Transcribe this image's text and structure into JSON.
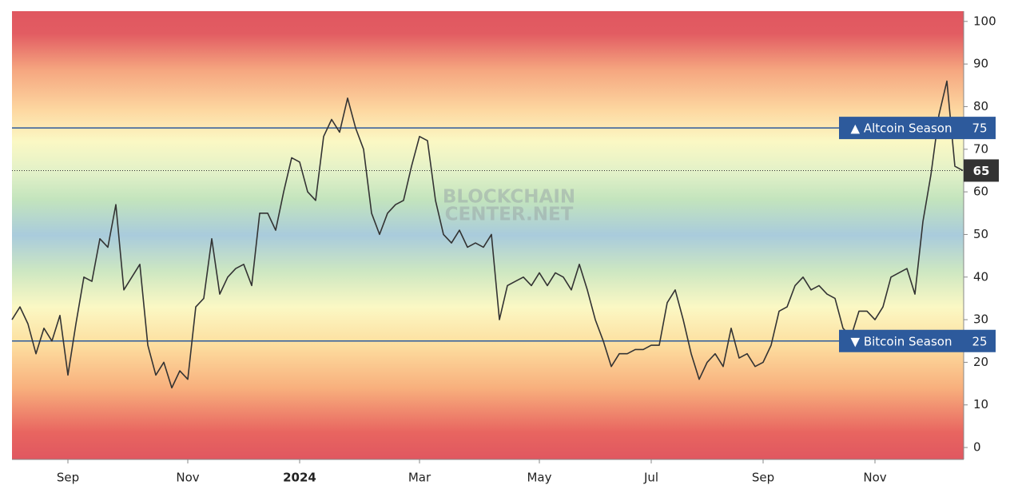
{
  "chart_data": {
    "type": "line",
    "watermark": [
      "BLOCKCHAIN",
      "CENTER.NET"
    ],
    "categories": [
      null,
      null,
      null,
      null,
      null,
      null,
      null,
      "Sep",
      null,
      null,
      null,
      null,
      null,
      null,
      null,
      null,
      null,
      null,
      null,
      null,
      null,
      null,
      "Nov",
      null,
      null,
      null,
      null,
      null,
      null,
      null,
      null,
      null,
      null,
      null,
      null,
      null,
      "2024",
      null,
      null,
      null,
      null,
      null,
      null,
      null,
      null,
      null,
      null,
      null,
      null,
      null,
      null,
      "Mar",
      null,
      null,
      null,
      null,
      null,
      null,
      null,
      null,
      null,
      null,
      null,
      null,
      null,
      null,
      "May",
      null,
      null,
      null,
      null,
      null,
      null,
      null,
      null,
      null,
      null,
      null,
      null,
      null,
      "Jul",
      null,
      null,
      null,
      null,
      null,
      null,
      null,
      null,
      null,
      null,
      null,
      null,
      null,
      "Sep",
      null,
      null,
      null,
      null,
      null,
      null,
      null,
      null,
      null,
      null,
      null,
      null,
      null,
      "Nov",
      null,
      null,
      null,
      null,
      null,
      null,
      null,
      null,
      null,
      null,
      null
    ],
    "series": [
      {
        "color": "#333333",
        "values": [
          30,
          33,
          29,
          22,
          28,
          25,
          31,
          17,
          29,
          40,
          39,
          49,
          47,
          57,
          37,
          40,
          43,
          24,
          17,
          20,
          14,
          18,
          16,
          33,
          35,
          49,
          36,
          40,
          42,
          43,
          38,
          55,
          55,
          51,
          60,
          68,
          67,
          60,
          58,
          73,
          77,
          74,
          82,
          75,
          70,
          55,
          50,
          55,
          57,
          58,
          66,
          73,
          72,
          58,
          50,
          48,
          51,
          47,
          48,
          47,
          50,
          30,
          38,
          39,
          40,
          38,
          41,
          38,
          41,
          40,
          37,
          43,
          37,
          30,
          25,
          19,
          22,
          22,
          23,
          23,
          24,
          24,
          34,
          37,
          30,
          22,
          16,
          20,
          22,
          19,
          28,
          21,
          22,
          19,
          20,
          24,
          32,
          33,
          38,
          40,
          37,
          38,
          36,
          35,
          28,
          26,
          32,
          32,
          30,
          33,
          40,
          41,
          42,
          36,
          53,
          64,
          78,
          86,
          66,
          65
        ]
      }
    ],
    "ylim": [
      -2.8,
      102.4
    ],
    "yticks": [
      0,
      10,
      20,
      30,
      40,
      50,
      60,
      70,
      80,
      90,
      100
    ],
    "reference_lines": [
      {
        "value": 75,
        "label": "▲ Altcoin Season",
        "color": "#2d5a9c"
      },
      {
        "value": 25,
        "label": "▼ Bitcoin Season",
        "color": "#2d5a9c"
      }
    ]
  }
}
